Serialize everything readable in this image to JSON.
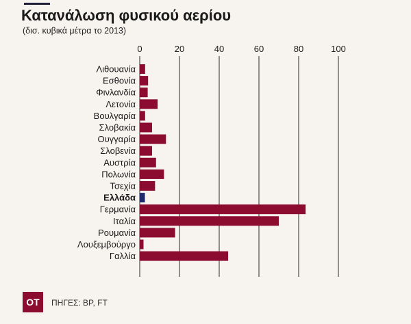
{
  "header": {
    "title": "Κατανάλωση φυσικού αερίου",
    "subtitle": "(δισ. κυβικά μέτρα το 2013)"
  },
  "footer": {
    "logo_text": "OT",
    "source": "ΠΗΓΕΣ: BP, FT"
  },
  "colors": {
    "bar": "#8b0c2e",
    "highlight": "#1f2a6b",
    "grid": "#2a2a2a"
  },
  "chart_data": {
    "type": "bar",
    "orientation": "horizontal",
    "title": "Κατανάλωση φυσικού αερίου",
    "subtitle": "(δισ. κυβικά μέτρα το 2013)",
    "categories": [
      "Λιθουανία",
      "Εσθονία",
      "Φινλανδία",
      "Λετονία",
      "Βουλγαρία",
      "Σλοβακία",
      "Ουγγαρία",
      "Σλοβενία",
      "Αυστρία",
      "Πολωνία",
      "Τσεχία",
      "Ελλάδα",
      "Γερμανία",
      "Ιταλία",
      "Ρουμανία",
      "Λουξεμβούργο",
      "Γαλλία"
    ],
    "values": [
      2.7,
      4.2,
      4.0,
      9.0,
      2.7,
      6.2,
      13.2,
      6.2,
      8.2,
      12.2,
      7.7,
      2.6,
      83.5,
      70.0,
      17.8,
      1.9,
      44.5
    ],
    "highlight": [
      "Ελλάδα"
    ],
    "xlim": [
      0,
      100
    ],
    "xticks": [
      0,
      20,
      40,
      60,
      80,
      100
    ],
    "axis_position": "top",
    "grid": true,
    "legend": "none"
  }
}
